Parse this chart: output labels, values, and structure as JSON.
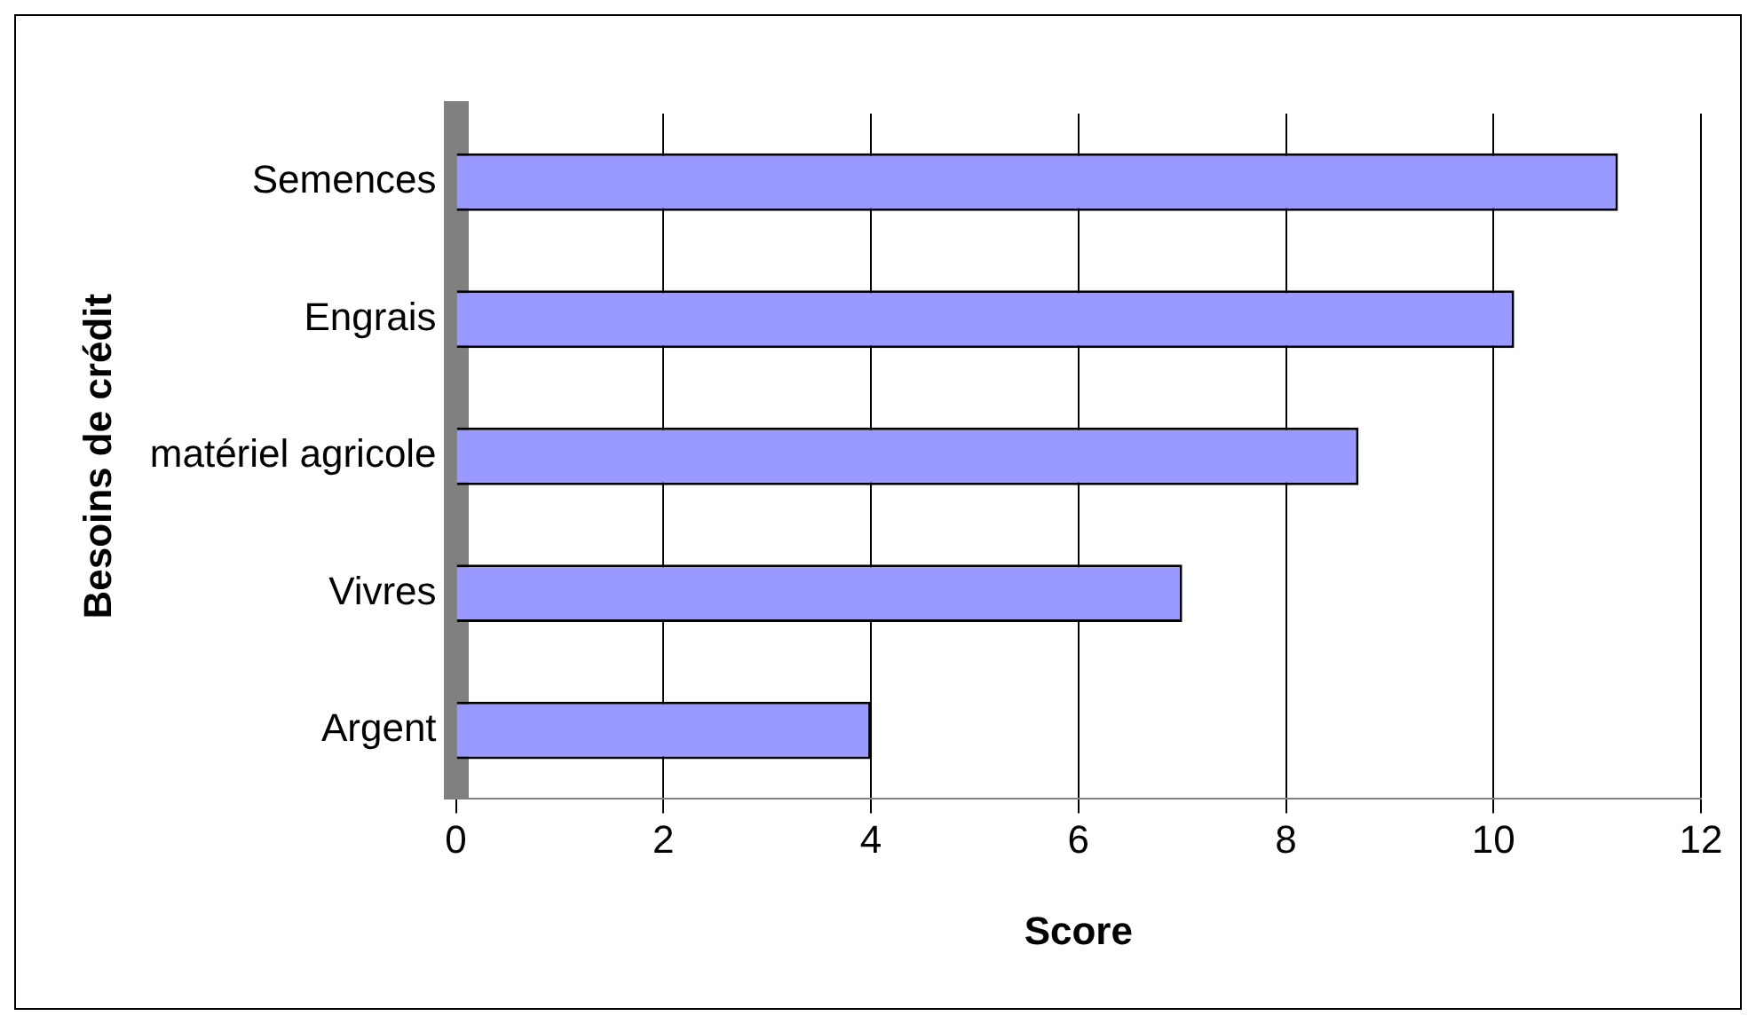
{
  "chart_data": {
    "type": "bar",
    "orientation": "horizontal",
    "categories": [
      "Semences",
      "Engrais",
      "matériel agricole",
      "Vivres",
      "Argent"
    ],
    "values": [
      11.2,
      10.2,
      8.7,
      7,
      4
    ],
    "color": "#9999ff",
    "xlabel": "Score",
    "ylabel": "Besoins de crédit",
    "xlim": [
      0,
      12
    ],
    "xticks": [
      0,
      2,
      4,
      6,
      8,
      10,
      12
    ],
    "grid": "x",
    "legend": false
  }
}
